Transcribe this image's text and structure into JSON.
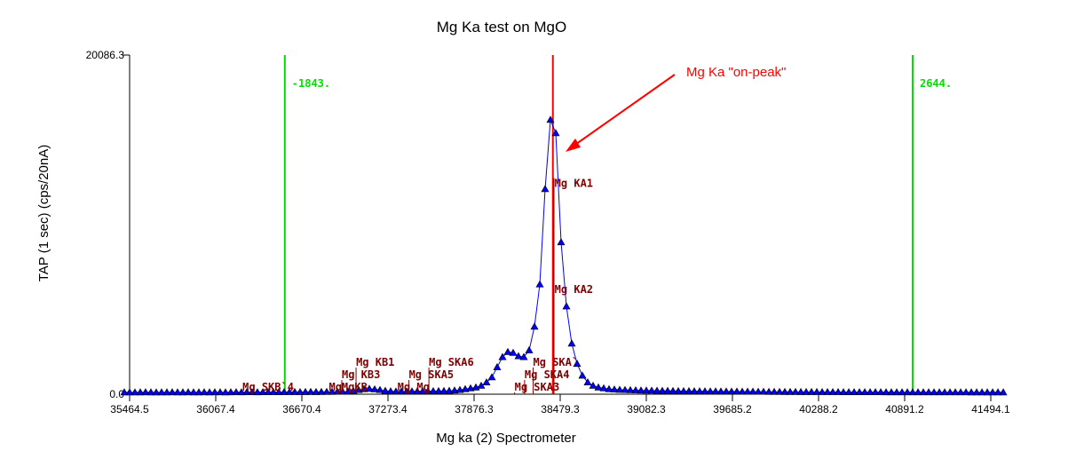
{
  "chart_data": {
    "type": "scatter",
    "title": "Mg Ka test on MgO",
    "xlabel": "Mg ka (2) Spectrometer",
    "ylabel": "TAP (1 sec) (cps/20nA)",
    "xlim": [
      35464.5,
      41494.1
    ],
    "ylim": [
      0.0,
      20086.3
    ],
    "xticks": [
      "35464.5",
      "36067.4",
      "36670.4",
      "37273.4",
      "37876.3",
      "38479.3",
      "39082.3",
      "39685.2",
      "40288.2",
      "40891.2",
      "41494.1"
    ],
    "yticks": [
      "0.0",
      "20086.3"
    ],
    "x_start": 35427,
    "x_step": 37.3,
    "y": [
      110,
      110,
      105,
      110,
      115,
      110,
      105,
      110,
      110,
      115,
      110,
      110,
      115,
      110,
      110,
      115,
      110,
      115,
      115,
      110,
      115,
      120,
      115,
      120,
      120,
      115,
      120,
      120,
      125,
      120,
      125,
      125,
      130,
      125,
      130,
      135,
      130,
      135,
      140,
      140,
      145,
      145,
      150,
      200,
      250,
      300,
      320,
      290,
      250,
      200,
      170,
      160,
      160,
      160,
      165,
      170,
      170,
      175,
      180,
      185,
      190,
      200,
      220,
      250,
      300,
      350,
      400,
      500,
      700,
      1000,
      1600,
      2200,
      2500,
      2450,
      2250,
      2200,
      2600,
      4000,
      6500,
      12150,
      16250,
      15460,
      9000,
      5200,
      3000,
      1800,
      1100,
      700,
      500,
      400,
      350,
      300,
      280,
      260,
      250,
      240,
      230,
      220,
      215,
      210,
      205,
      200,
      195,
      190,
      185,
      180,
      180,
      175,
      170,
      170,
      165,
      165,
      160,
      160,
      155,
      155,
      150,
      150,
      150,
      145,
      145,
      140,
      140,
      140,
      135,
      135,
      135,
      130,
      130,
      130,
      130,
      125,
      125,
      125,
      125,
      120,
      120,
      120,
      120,
      120,
      118,
      118,
      118,
      116,
      116,
      116,
      115,
      115,
      115,
      114,
      114,
      114,
      113,
      113,
      113,
      112,
      112,
      112,
      112,
      111,
      111,
      111,
      110,
      110,
      110,
      110
    ],
    "markers": [
      {
        "label": "-1843.",
        "x": 36551,
        "color": "#00e000"
      },
      {
        "label": "2644.",
        "x": 40947,
        "color": "#00e000"
      },
      {
        "label": "",
        "x": 38428,
        "color": "#ff0000"
      }
    ],
    "line_labels": [
      {
        "label": "Mg KA1",
        "x": 38440,
        "y": 12500
      },
      {
        "label": "Mg KA2",
        "x": 38440,
        "y": 6200
      },
      {
        "label": "Mg SKB`4",
        "x": 36255,
        "y": 0
      },
      {
        "label": "MgMgKB",
        "x": 36860,
        "y": 0
      },
      {
        "label": "Mg KB3",
        "x": 36950,
        "y": 0
      },
      {
        "label": "Mg KB1",
        "x": 37050,
        "y": 0
      },
      {
        "label": "Mg Mg",
        "x": 37340,
        "y": 0
      },
      {
        "label": "Mg SKA5",
        "x": 37420,
        "y": 0
      },
      {
        "label": "Mg SKA6",
        "x": 37560,
        "y": 0
      },
      {
        "label": "Mg SKA3",
        "x": 38160,
        "y": 600
      },
      {
        "label": "Mg SKA4",
        "x": 38230,
        "y": 600
      },
      {
        "label": "Mg SKA`",
        "x": 38290,
        "y": 0
      }
    ],
    "annotation": {
      "text": "Mg Ka \"on-peak\"",
      "color": "#ff0000"
    },
    "series_color": "#0000ff"
  }
}
